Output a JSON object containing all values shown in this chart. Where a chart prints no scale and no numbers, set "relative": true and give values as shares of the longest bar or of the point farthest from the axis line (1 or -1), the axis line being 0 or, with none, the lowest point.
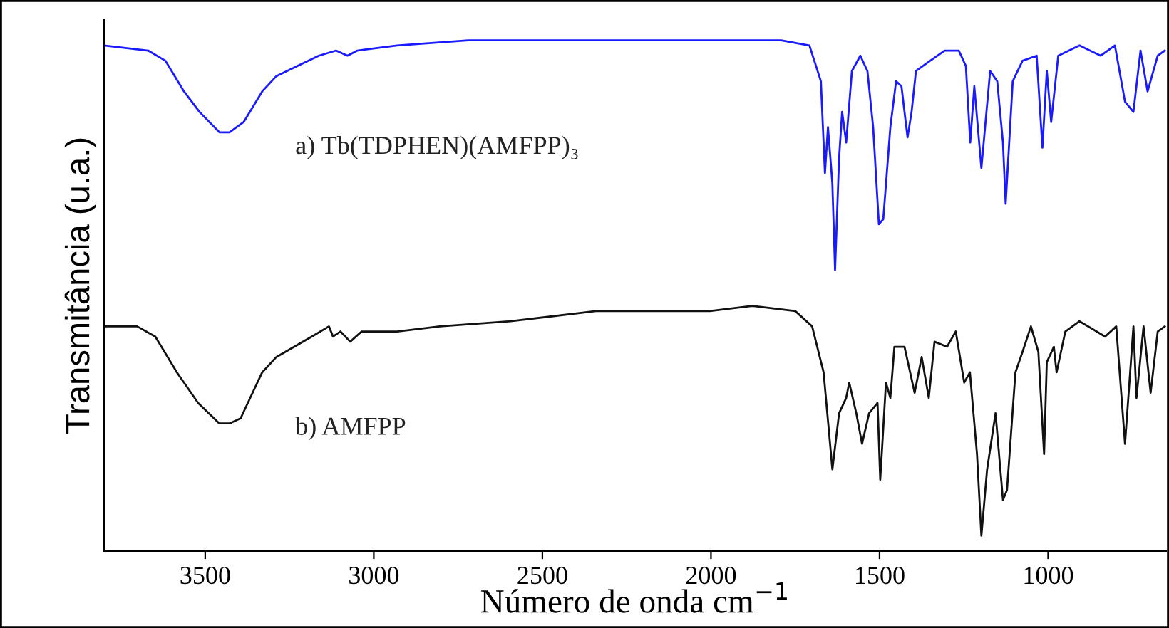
{
  "chart_data": {
    "type": "line",
    "relative": true,
    "xlabel": "Número de onda cm$^{−1}$",
    "ylabel": "Transmitância (u.a.)",
    "xlim": [
      3800,
      650
    ],
    "xticks": [
      3500,
      3000,
      2500,
      2000,
      1500,
      1000
    ],
    "legend": false,
    "grid": false,
    "series": [
      {
        "name": "a) Tb(TDPHEN)(AMFPP)₃",
        "color": "#1a1aff",
        "x": [
          3800,
          3669,
          3618,
          3563,
          3517,
          3458,
          3428,
          3386,
          3331,
          3289,
          3226,
          3163,
          3112,
          3078,
          3049,
          2931,
          2720,
          2425,
          2003,
          1792,
          1708,
          1674,
          1662,
          1653,
          1640,
          1632,
          1620,
          1611,
          1599,
          1582,
          1557,
          1536,
          1519,
          1502,
          1489,
          1468,
          1451,
          1435,
          1417,
          1405,
          1392,
          1350,
          1307,
          1265,
          1244,
          1231,
          1219,
          1198,
          1172,
          1151,
          1134,
          1126,
          1105,
          1076,
          1034,
          1017,
          1004,
          991,
          970,
          907,
          844,
          802,
          772,
          747,
          726,
          705,
          675,
          654
        ],
        "values": [
          0.99,
          0.98,
          0.96,
          0.9,
          0.86,
          0.82,
          0.82,
          0.84,
          0.9,
          0.93,
          0.95,
          0.97,
          0.98,
          0.97,
          0.98,
          0.99,
          1.0,
          1.0,
          1.0,
          1.0,
          0.99,
          0.92,
          0.74,
          0.83,
          0.72,
          0.55,
          0.77,
          0.86,
          0.8,
          0.94,
          0.97,
          0.94,
          0.83,
          0.64,
          0.65,
          0.83,
          0.92,
          0.91,
          0.81,
          0.86,
          0.94,
          0.96,
          0.98,
          0.98,
          0.95,
          0.8,
          0.91,
          0.75,
          0.94,
          0.92,
          0.8,
          0.68,
          0.92,
          0.96,
          0.97,
          0.79,
          0.94,
          0.84,
          0.97,
          0.99,
          0.97,
          0.99,
          0.88,
          0.86,
          0.98,
          0.9,
          0.97,
          0.98
        ]
      },
      {
        "name": "b) AMFPP",
        "color": "#111111",
        "x": [
          3800,
          3702,
          3648,
          3584,
          3521,
          3458,
          3428,
          3395,
          3331,
          3289,
          3184,
          3133,
          3121,
          3099,
          3070,
          3036,
          2931,
          2804,
          2594,
          2341,
          2003,
          1877,
          1750,
          1700,
          1666,
          1640,
          1620,
          1599,
          1590,
          1569,
          1552,
          1531,
          1506,
          1498,
          1481,
          1468,
          1456,
          1426,
          1396,
          1375,
          1354,
          1337,
          1300,
          1274,
          1249,
          1232,
          1211,
          1198,
          1181,
          1156,
          1134,
          1122,
          1097,
          1076,
          1051,
          1029,
          1012,
          1004,
          983,
          975,
          949,
          907,
          831,
          798,
          772,
          747,
          738,
          717,
          696,
          675,
          654
        ],
        "values": [
          0.44,
          0.44,
          0.42,
          0.35,
          0.29,
          0.25,
          0.25,
          0.26,
          0.35,
          0.38,
          0.42,
          0.44,
          0.42,
          0.43,
          0.41,
          0.43,
          0.43,
          0.44,
          0.45,
          0.47,
          0.47,
          0.48,
          0.47,
          0.44,
          0.35,
          0.16,
          0.27,
          0.3,
          0.33,
          0.27,
          0.21,
          0.27,
          0.29,
          0.14,
          0.33,
          0.3,
          0.4,
          0.4,
          0.31,
          0.38,
          0.3,
          0.41,
          0.4,
          0.43,
          0.33,
          0.35,
          0.19,
          0.03,
          0.16,
          0.27,
          0.1,
          0.12,
          0.35,
          0.39,
          0.44,
          0.39,
          0.19,
          0.37,
          0.4,
          0.35,
          0.43,
          0.45,
          0.42,
          0.44,
          0.21,
          0.44,
          0.3,
          0.44,
          0.31,
          0.43,
          0.44
        ]
      }
    ]
  }
}
